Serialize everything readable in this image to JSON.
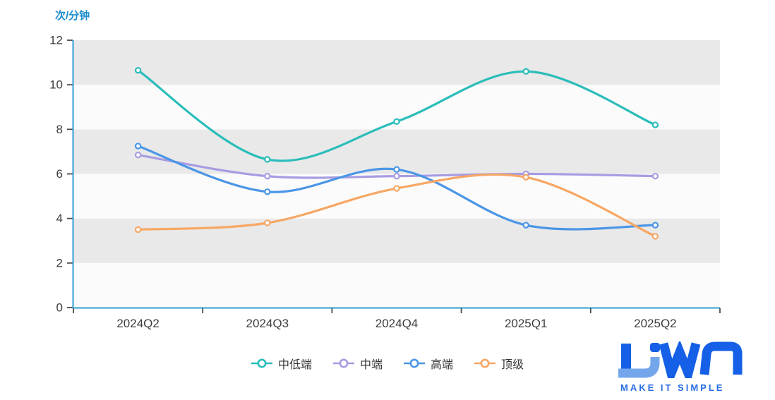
{
  "chart_data": {
    "type": "line",
    "smooth": true,
    "y_axis_title": "次/分钟",
    "xlabel": "",
    "ylabel": "次/分钟",
    "categories": [
      "2024Q2",
      "2024Q3",
      "2024Q4",
      "2025Q1",
      "2025Q2"
    ],
    "y_ticks": [
      0,
      2,
      4,
      6,
      8,
      10,
      12
    ],
    "ylim": [
      0,
      12
    ],
    "grid": "alternating horizontal split bands, no gridlines",
    "legend_position": "bottom-center",
    "marker": "hollow-circle",
    "series": [
      {
        "name": "中低端",
        "color": "#2abdb9",
        "values": [
          10.65,
          6.65,
          8.35,
          10.6,
          8.2
        ]
      },
      {
        "name": "中端",
        "color": "#a79ce2",
        "values": [
          6.85,
          5.9,
          5.9,
          6.0,
          5.9
        ]
      },
      {
        "name": "高端",
        "color": "#4b96e6",
        "values": [
          7.25,
          5.2,
          6.2,
          3.7,
          3.7
        ]
      },
      {
        "name": "顶级",
        "color": "#f7a765",
        "values": [
          3.5,
          3.8,
          5.35,
          5.85,
          3.2
        ]
      }
    ],
    "colors": {
      "axis_line": "#2f9fd5",
      "tick_mark": "#4a4a4a",
      "tick_label": "#3d3d3d",
      "band_dark": "#e9e9e9",
      "band_light": "#fbfbfb",
      "axis_title": "#1a8ccd"
    }
  },
  "logo": {
    "text": "LiWA",
    "tagline": "MAKE IT SIMPLE",
    "primary": "#1560e6",
    "accent": "#74a6ec",
    "tagline_color": "#2a6ee4"
  }
}
